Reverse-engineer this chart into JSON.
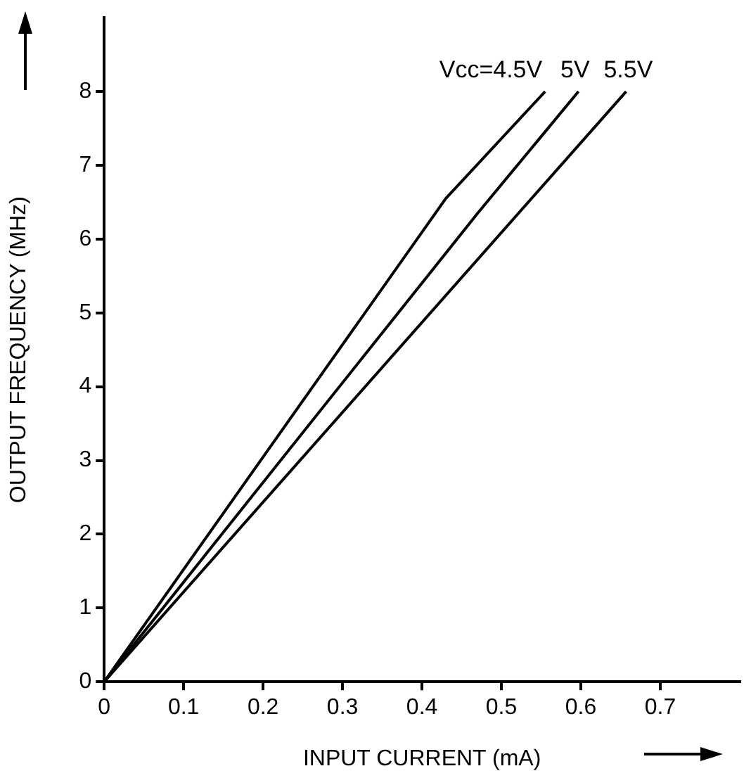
{
  "chart_data": {
    "type": "line",
    "xlabel": "INPUT CURRENT (mA)",
    "ylabel": "OUTPUT FREQUENCY (MHz)",
    "xlim": [
      0,
      0.8
    ],
    "xticks": [
      0,
      0.1,
      0.2,
      0.3,
      0.4,
      0.5,
      0.6,
      0.7
    ],
    "ylim": [
      0,
      9
    ],
    "yticks": [
      0,
      1,
      2,
      3,
      4,
      5,
      6,
      7,
      8
    ],
    "grid": false,
    "legend": false,
    "marker": "none",
    "line_style": "solid",
    "series": [
      {
        "name": "Vcc=4.5V",
        "color": "#000000",
        "x": [
          0,
          0.43,
          0.555
        ],
        "values": [
          0,
          6.55,
          8
        ]
      },
      {
        "name": "5V",
        "color": "#000000",
        "x": [
          0,
          0.47,
          0.597
        ],
        "values": [
          0,
          6.35,
          8
        ]
      },
      {
        "name": "5.5V",
        "color": "#000000",
        "x": [
          0,
          0.657
        ],
        "values": [
          0,
          8
        ]
      }
    ]
  }
}
